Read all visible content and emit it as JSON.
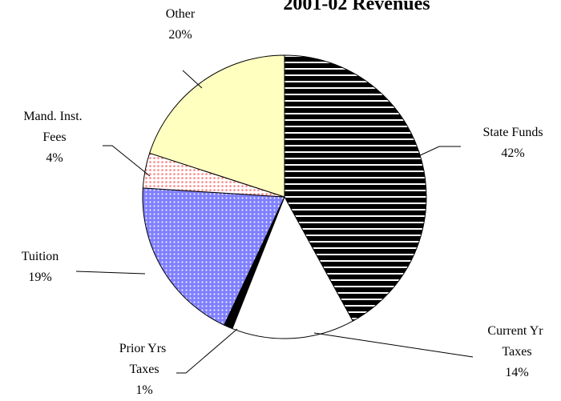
{
  "chart_data": {
    "type": "pie",
    "title": "2001-02 Revenues",
    "categories": [
      "State Funds",
      "Current Yr Taxes",
      "Prior Yrs Taxes",
      "Tuition",
      "Mand. Inst. Fees",
      "Other"
    ],
    "values": [
      42,
      14,
      1,
      19,
      4,
      20
    ],
    "value_labels": [
      "42%",
      "14%",
      "1%",
      "19%",
      "4%",
      "20%"
    ],
    "colors": [
      "#000000",
      "#ffffff",
      "#000000",
      "#8080ff",
      "#ffffff",
      "#ffffc0"
    ],
    "patterns": [
      "horizontal-stripes",
      "none",
      "none",
      "dots",
      "dots",
      "none"
    ]
  }
}
